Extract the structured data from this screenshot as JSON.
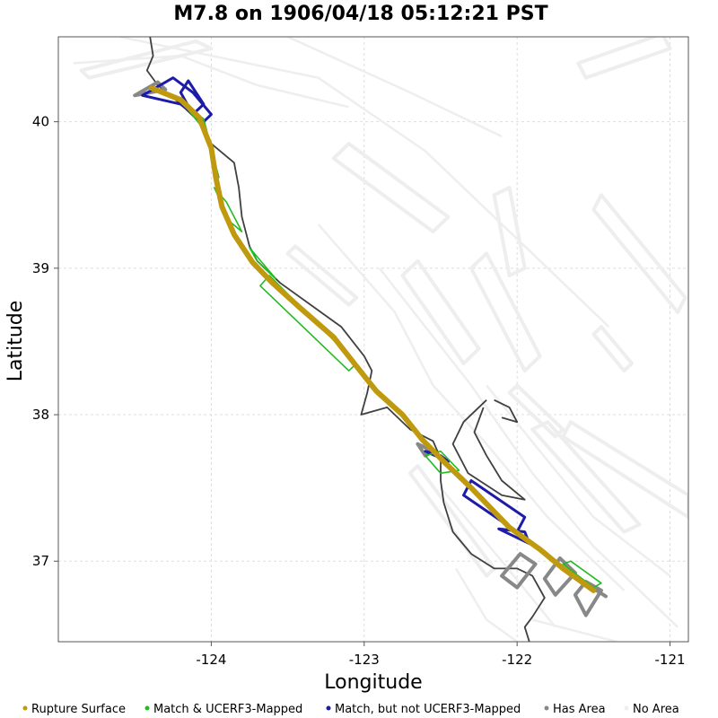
{
  "chart_data": {
    "type": "map",
    "title": "M7.8 on 1906/04/18 05:12:21 PST",
    "xlabel": "Longitude",
    "ylabel": "Latitude",
    "xlim": [
      -125.0,
      -120.88
    ],
    "ylim": [
      36.45,
      40.58
    ],
    "x_ticks": [
      -124,
      -123,
      -122,
      -121
    ],
    "y_ticks": [
      37,
      38,
      39,
      40
    ],
    "x_tick_labels": [
      "-124",
      "-123",
      "-122",
      "-121"
    ],
    "y_tick_labels": [
      "37",
      "38",
      "39",
      "40"
    ],
    "grid": true,
    "legend_position": "bottom",
    "legend": [
      {
        "label": "Rupture Surface",
        "color": "#c09a0e"
      },
      {
        "label": "Match & UCERF3-Mapped",
        "color": "#22bb22"
      },
      {
        "label": "Match, but not UCERF3-Mapped",
        "color": "#1c1ca8"
      },
      {
        "label": "Has Area",
        "color": "#888888"
      },
      {
        "label": "No Area",
        "color": "#eeeeee"
      }
    ],
    "series": [
      {
        "name": "Rupture Surface",
        "color": "#c09a0e",
        "points": [
          [
            -124.39,
            40.23
          ],
          [
            -124.2,
            40.15
          ],
          [
            -124.08,
            40.03
          ],
          [
            -124.0,
            39.82
          ],
          [
            -123.97,
            39.62
          ],
          [
            -123.93,
            39.42
          ],
          [
            -123.85,
            39.23
          ],
          [
            -123.73,
            39.04
          ],
          [
            -123.6,
            38.9
          ],
          [
            -123.42,
            38.73
          ],
          [
            -123.2,
            38.53
          ],
          [
            -123.05,
            38.33
          ],
          [
            -122.92,
            38.16
          ],
          [
            -122.75,
            38.0
          ],
          [
            -122.62,
            37.83
          ],
          [
            -122.48,
            37.68
          ],
          [
            -122.3,
            37.5
          ],
          [
            -122.05,
            37.23
          ],
          [
            -121.85,
            37.08
          ],
          [
            -121.7,
            36.95
          ],
          [
            -121.5,
            36.8
          ]
        ]
      },
      {
        "name": "Match & UCERF3-Mapped",
        "color": "#22bb22",
        "polygons": [
          [
            [
              -124.18,
              40.12
            ],
            [
              -124.05,
              40.02
            ],
            [
              -123.95,
              39.62
            ],
            [
              -124.05,
              39.95
            ]
          ],
          [
            [
              -123.98,
              39.55
            ],
            [
              -123.88,
              39.32
            ],
            [
              -123.8,
              39.25
            ],
            [
              -123.9,
              39.45
            ]
          ],
          [
            [
              -123.75,
              39.14
            ],
            [
              -123.62,
              38.98
            ],
            [
              -123.58,
              38.93
            ],
            [
              -123.7,
              39.05
            ]
          ],
          [
            [
              -123.68,
              38.88
            ],
            [
              -123.1,
              38.3
            ],
            [
              -123.05,
              38.35
            ],
            [
              -123.62,
              38.95
            ]
          ],
          [
            [
              -122.5,
              37.75
            ],
            [
              -122.38,
              37.62
            ],
            [
              -122.5,
              37.6
            ],
            [
              -122.6,
              37.72
            ]
          ],
          [
            [
              -121.7,
              36.98
            ],
            [
              -121.5,
              36.82
            ],
            [
              -121.45,
              36.85
            ],
            [
              -121.65,
              37.0
            ]
          ]
        ]
      },
      {
        "name": "Match, but not UCERF3-Mapped",
        "color": "#1c1ca8",
        "polygons": [
          [
            [
              -124.45,
              40.18
            ],
            [
              -124.2,
              40.12
            ],
            [
              -124.05,
              40.0
            ],
            [
              -124.0,
              40.05
            ],
            [
              -124.12,
              40.2
            ],
            [
              -124.25,
              40.3
            ]
          ],
          [
            [
              -124.15,
              40.28
            ],
            [
              -124.05,
              40.12
            ],
            [
              -124.12,
              40.05
            ],
            [
              -124.2,
              40.2
            ]
          ],
          [
            [
              -122.6,
              37.75
            ],
            [
              -122.45,
              37.68
            ],
            [
              -122.5,
              37.72
            ]
          ],
          [
            [
              -122.35,
              37.45
            ],
            [
              -122.0,
              37.2
            ],
            [
              -121.95,
              37.3
            ],
            [
              -122.3,
              37.55
            ]
          ],
          [
            [
              -122.12,
              37.22
            ],
            [
              -121.92,
              37.12
            ],
            [
              -121.95,
              37.2
            ]
          ]
        ]
      },
      {
        "name": "Has Area",
        "color": "#888888",
        "polygons": [
          [
            [
              -124.5,
              40.18
            ],
            [
              -124.3,
              40.22
            ],
            [
              -124.35,
              40.27
            ]
          ],
          [
            [
              -122.65,
              37.8
            ],
            [
              -122.55,
              37.75
            ],
            [
              -122.6,
              37.72
            ]
          ],
          [
            [
              -122.1,
              36.9
            ],
            [
              -121.98,
              37.05
            ],
            [
              -121.88,
              36.98
            ],
            [
              -122.0,
              36.82
            ]
          ],
          [
            [
              -121.82,
              36.88
            ],
            [
              -121.72,
              37.02
            ],
            [
              -121.62,
              36.92
            ],
            [
              -121.75,
              36.77
            ]
          ],
          [
            [
              -121.62,
              36.77
            ],
            [
              -121.55,
              36.86
            ],
            [
              -121.45,
              36.8
            ],
            [
              -121.55,
              36.63
            ]
          ],
          [
            [
              -121.48,
              36.8
            ],
            [
              -121.42,
              36.76
            ]
          ]
        ]
      }
    ],
    "background_faults": {
      "name": "No Area",
      "color": "#eeeeee",
      "polygons": [
        [
          [
            -124.85,
            40.35
          ],
          [
            -124.1,
            40.55
          ],
          [
            -124.0,
            40.5
          ],
          [
            -124.8,
            40.3
          ]
        ],
        [
          [
            -123.2,
            39.75
          ],
          [
            -122.55,
            39.25
          ],
          [
            -122.45,
            39.35
          ],
          [
            -123.1,
            39.85
          ]
        ],
        [
          [
            -122.75,
            38.95
          ],
          [
            -122.35,
            38.35
          ],
          [
            -122.25,
            38.45
          ],
          [
            -122.65,
            39.05
          ]
        ],
        [
          [
            -122.3,
            39.0
          ],
          [
            -121.95,
            38.3
          ],
          [
            -121.85,
            38.4
          ],
          [
            -122.2,
            39.1
          ]
        ],
        [
          [
            -122.15,
            39.5
          ],
          [
            -122.05,
            38.95
          ],
          [
            -121.95,
            39.0
          ],
          [
            -122.05,
            39.55
          ]
        ],
        [
          [
            -121.45,
            39.5
          ],
          [
            -120.9,
            38.8
          ],
          [
            -120.95,
            38.7
          ],
          [
            -121.5,
            39.4
          ]
        ],
        [
          [
            -121.45,
            38.6
          ],
          [
            -121.25,
            38.35
          ],
          [
            -121.3,
            38.3
          ],
          [
            -121.5,
            38.55
          ]
        ],
        [
          [
            -121.65,
            37.95
          ],
          [
            -120.88,
            37.45
          ],
          [
            -120.88,
            37.3
          ],
          [
            -121.7,
            37.85
          ]
        ],
        [
          [
            -121.6,
            40.4
          ],
          [
            -121.05,
            40.6
          ],
          [
            -121.0,
            40.5
          ],
          [
            -121.55,
            40.3
          ]
        ],
        [
          [
            -123.5,
            39.1
          ],
          [
            -123.1,
            38.75
          ],
          [
            -123.05,
            38.8
          ],
          [
            -123.45,
            39.15
          ]
        ],
        [
          [
            -122.7,
            37.6
          ],
          [
            -122.2,
            36.9
          ],
          [
            -122.15,
            36.95
          ],
          [
            -122.65,
            37.65
          ]
        ],
        [
          [
            -121.9,
            37.9
          ],
          [
            -121.3,
            37.2
          ],
          [
            -121.2,
            37.25
          ],
          [
            -121.8,
            37.95
          ]
        ],
        [
          [
            -122.05,
            38.15
          ],
          [
            -121.75,
            37.85
          ],
          [
            -121.7,
            37.9
          ],
          [
            -122.0,
            38.2
          ]
        ]
      ],
      "lines": [
        [
          [
            -124.9,
            40.4
          ],
          [
            -124.2,
            40.45
          ],
          [
            -123.7,
            40.25
          ],
          [
            -123.1,
            40.1
          ]
        ],
        [
          [
            -124.6,
            40.58
          ],
          [
            -123.3,
            40.3
          ],
          [
            -122.6,
            39.8
          ],
          [
            -122.0,
            39.2
          ],
          [
            -121.4,
            38.6
          ]
        ],
        [
          [
            -123.5,
            40.58
          ],
          [
            -122.7,
            40.2
          ],
          [
            -122.1,
            39.9
          ]
        ],
        [
          [
            -123.3,
            39.3
          ],
          [
            -122.8,
            38.7
          ],
          [
            -122.55,
            38.2
          ],
          [
            -122.2,
            37.8
          ],
          [
            -121.8,
            37.3
          ],
          [
            -121.3,
            36.8
          ]
        ],
        [
          [
            -122.9,
            39.0
          ],
          [
            -122.3,
            38.2
          ],
          [
            -121.9,
            37.6
          ],
          [
            -121.5,
            37.1
          ],
          [
            -120.95,
            36.55
          ]
        ],
        [
          [
            -122.2,
            38.2
          ],
          [
            -121.85,
            37.75
          ],
          [
            -121.5,
            37.3
          ],
          [
            -121.0,
            36.9
          ]
        ],
        [
          [
            -122.5,
            37.5
          ],
          [
            -122.1,
            37.0
          ],
          [
            -121.75,
            36.55
          ]
        ],
        [
          [
            -121.9,
            36.6
          ],
          [
            -121.35,
            36.45
          ]
        ],
        [
          [
            -122.4,
            36.95
          ],
          [
            -122.2,
            36.6
          ],
          [
            -122.0,
            36.45
          ]
        ]
      ]
    },
    "coastline": [
      [
        [
          -124.4,
          40.58
        ],
        [
          -124.38,
          40.45
        ],
        [
          -124.42,
          40.35
        ],
        [
          -124.35,
          40.25
        ],
        [
          -124.2,
          40.12
        ],
        [
          -124.08,
          40.0
        ],
        [
          -124.0,
          39.85
        ],
        [
          -123.85,
          39.72
        ],
        [
          -123.82,
          39.55
        ],
        [
          -123.8,
          39.35
        ],
        [
          -123.75,
          39.15
        ],
        [
          -123.7,
          39.05
        ],
        [
          -123.55,
          38.9
        ],
        [
          -123.35,
          38.75
        ],
        [
          -123.15,
          38.6
        ],
        [
          -123.0,
          38.4
        ],
        [
          -122.95,
          38.3
        ],
        [
          -122.98,
          38.15
        ],
        [
          -123.02,
          38.0
        ],
        [
          -122.85,
          38.05
        ],
        [
          -122.7,
          37.9
        ],
        [
          -122.55,
          37.82
        ],
        [
          -122.5,
          37.7
        ],
        [
          -122.5,
          37.55
        ],
        [
          -122.48,
          37.4
        ],
        [
          -122.42,
          37.2
        ],
        [
          -122.3,
          37.05
        ],
        [
          -122.15,
          36.95
        ],
        [
          -122.0,
          36.95
        ],
        [
          -121.9,
          36.9
        ],
        [
          -121.82,
          36.75
        ],
        [
          -121.9,
          36.62
        ],
        [
          -121.95,
          36.55
        ],
        [
          -121.92,
          36.45
        ]
      ],
      [
        [
          -122.2,
          38.1
        ],
        [
          -122.35,
          37.95
        ],
        [
          -122.42,
          37.8
        ],
        [
          -122.32,
          37.6
        ],
        [
          -122.1,
          37.45
        ],
        [
          -121.95,
          37.42
        ],
        [
          -122.1,
          37.55
        ],
        [
          -122.2,
          37.72
        ],
        [
          -122.28,
          37.88
        ],
        [
          -122.22,
          38.05
        ]
      ],
      [
        [
          -122.15,
          38.1
        ],
        [
          -122.05,
          38.05
        ],
        [
          -122.0,
          37.95
        ],
        [
          -122.1,
          37.98
        ]
      ]
    ]
  }
}
